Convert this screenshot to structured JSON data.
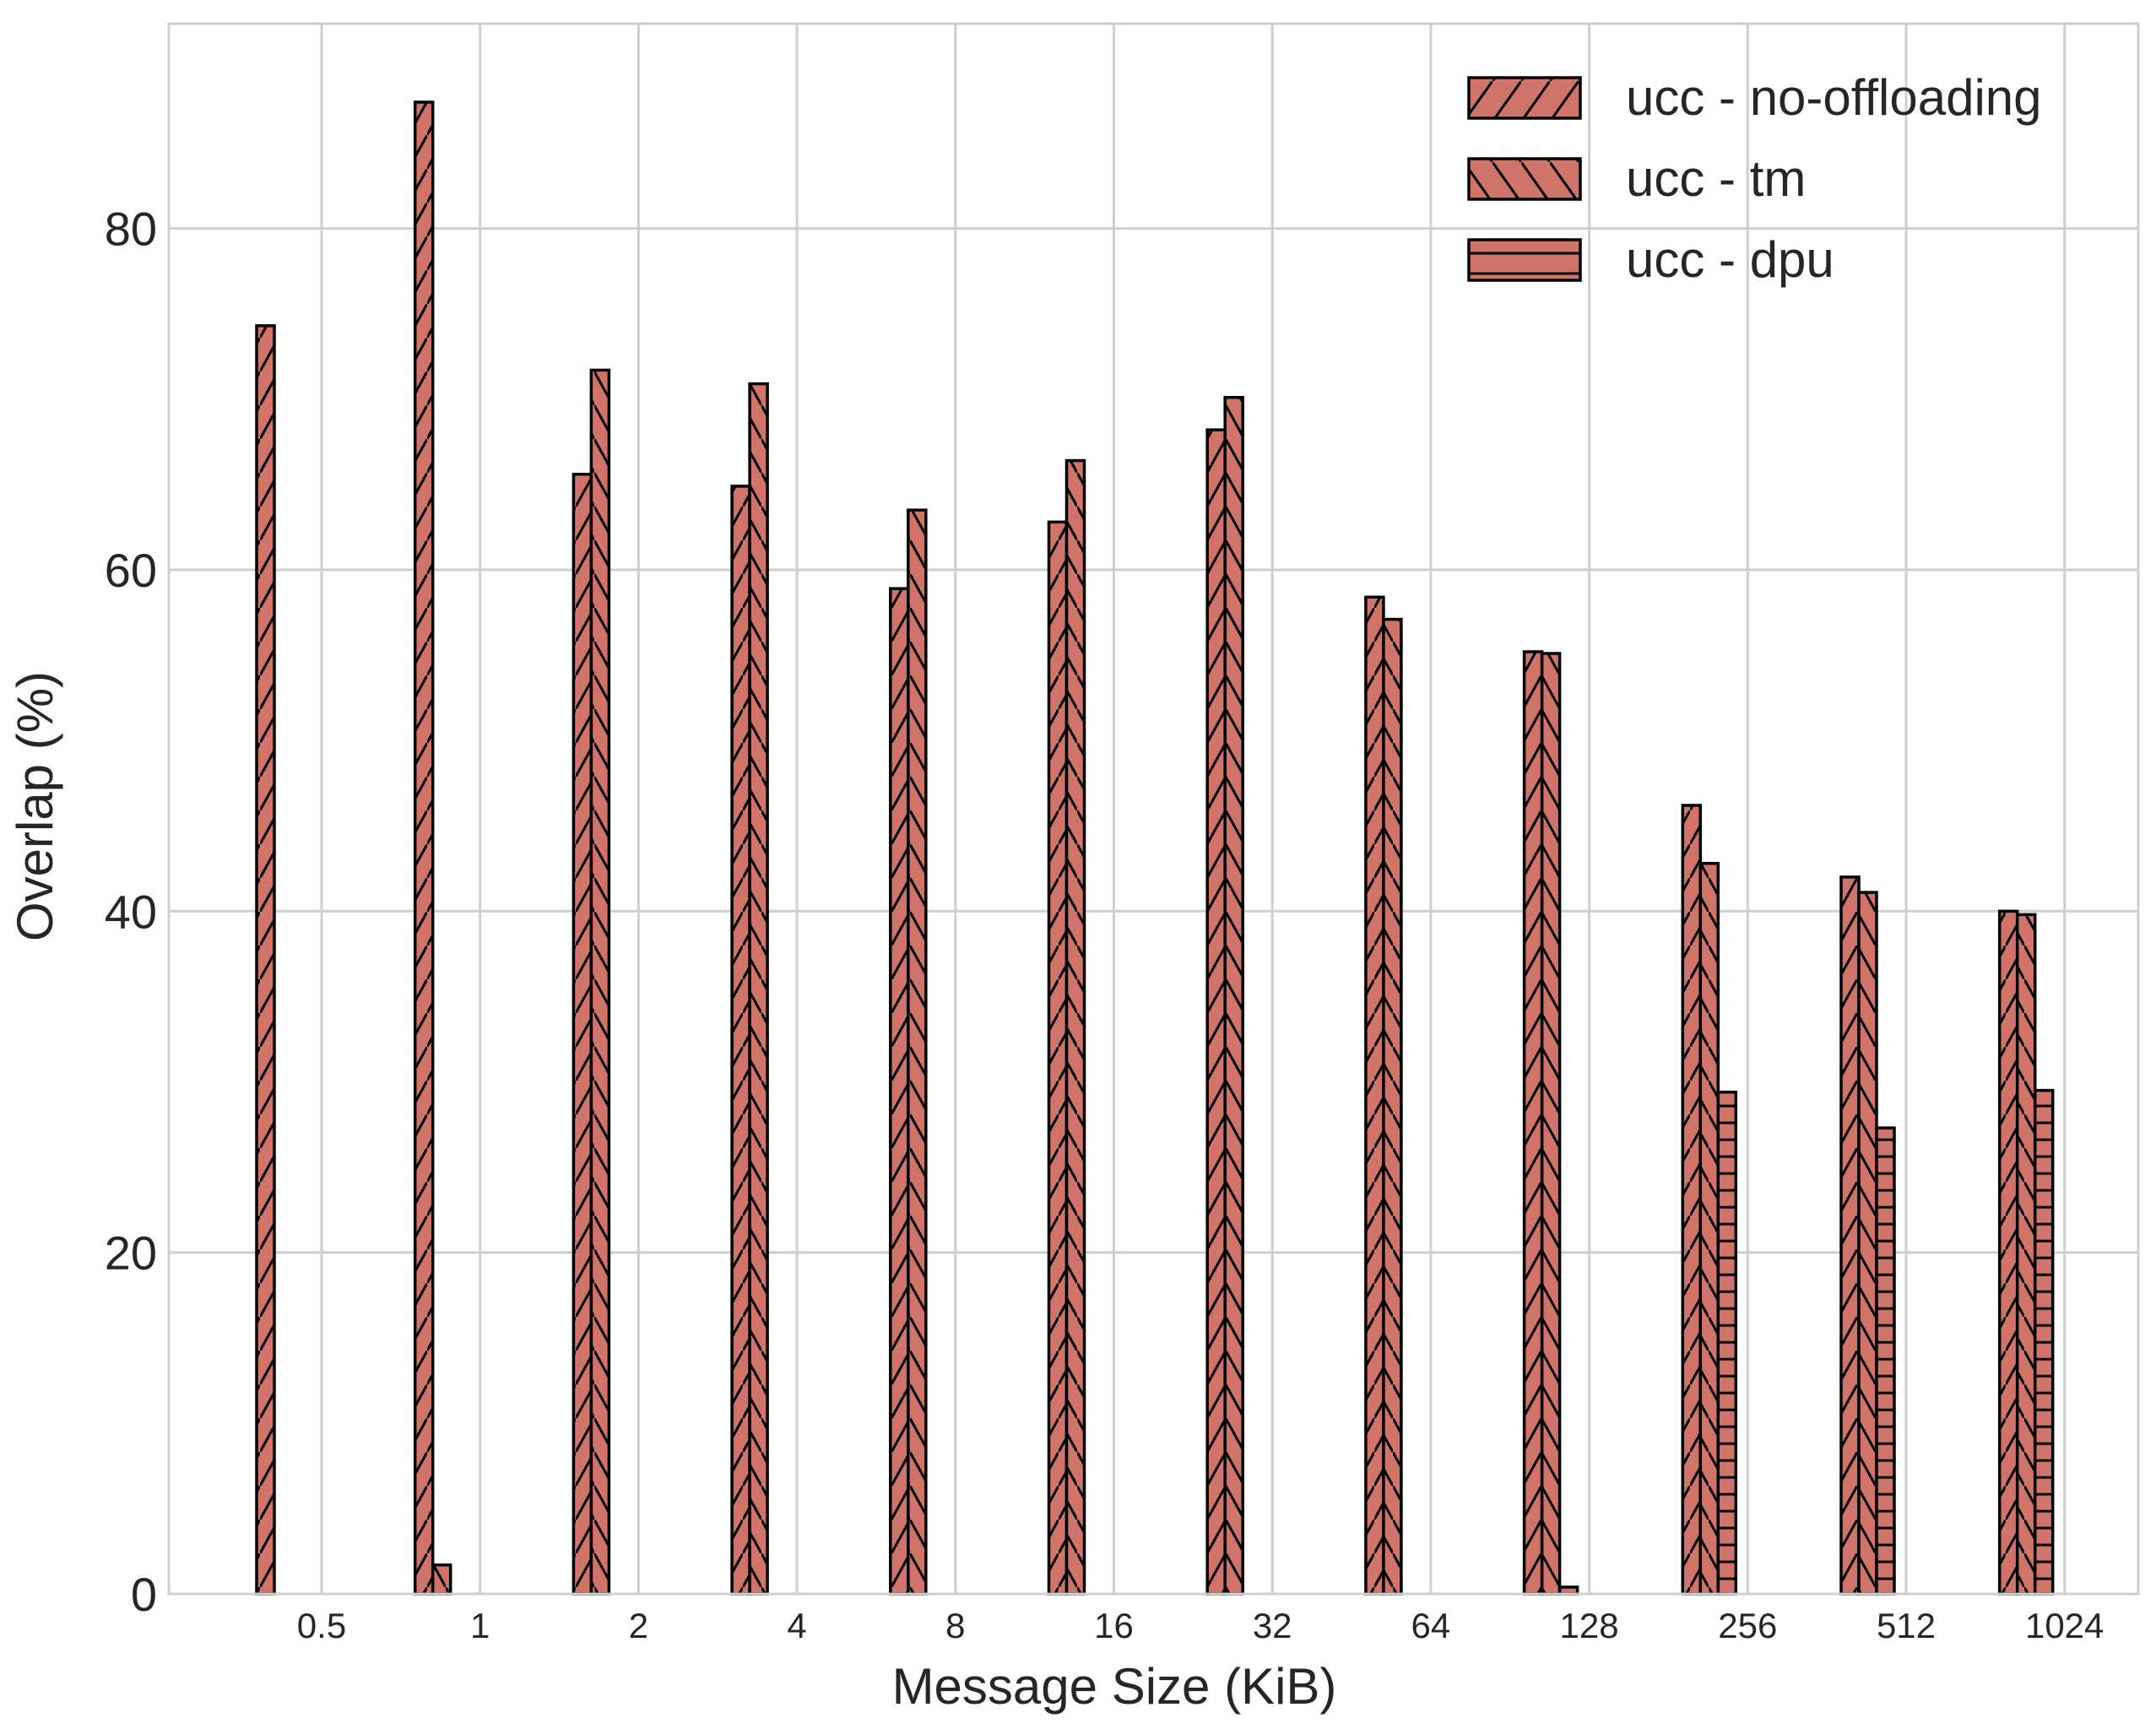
{
  "chart_data": {
    "type": "bar",
    "title": "",
    "xlabel": "Message Size (KiB)",
    "ylabel": "Overlap (%)",
    "ylim": [
      0,
      92
    ],
    "yticks": [
      0,
      20,
      40,
      60,
      80
    ],
    "grid": true,
    "legend_position": "top-right",
    "categories": [
      "0.5",
      "1",
      "2",
      "4",
      "8",
      "16",
      "32",
      "64",
      "128",
      "256",
      "512",
      "1024"
    ],
    "series": [
      {
        "name": "ucc - no-offloading",
        "hatch": "forward-diagonal",
        "values": [
          74.3,
          87.4,
          65.6,
          64.9,
          58.9,
          62.8,
          68.2,
          58.4,
          55.2,
          46.2,
          42.0,
          40.0
        ]
      },
      {
        "name": "ucc - tm",
        "hatch": "back-diagonal",
        "values": [
          0,
          1.7,
          71.7,
          70.9,
          63.5,
          66.4,
          70.1,
          57.1,
          55.1,
          42.8,
          41.1,
          39.8
        ]
      },
      {
        "name": "ucc - dpu",
        "hatch": "horizontal",
        "values": [
          0,
          0,
          0,
          0,
          0,
          0,
          0,
          0,
          0.4,
          29.4,
          27.3,
          29.5
        ]
      }
    ],
    "colors": {
      "bar_fill": "#d0746a",
      "bar_edge": "#000000",
      "grid": "#cfcfcf",
      "text": "#262626"
    }
  }
}
